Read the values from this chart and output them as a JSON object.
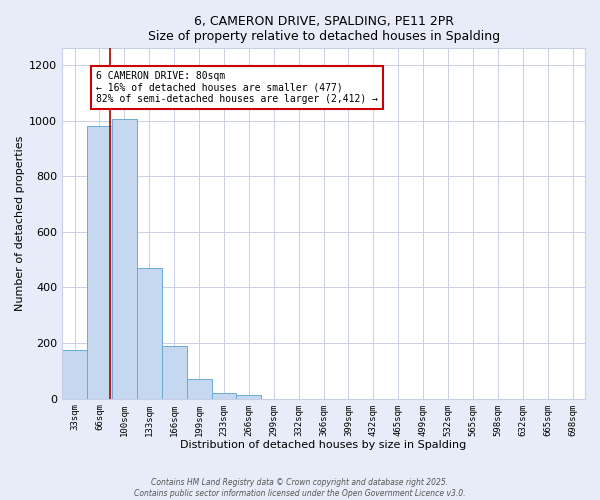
{
  "title": "6, CAMERON DRIVE, SPALDING, PE11 2PR",
  "subtitle": "Size of property relative to detached houses in Spalding",
  "xlabel": "Distribution of detached houses by size in Spalding",
  "ylabel": "Number of detached properties",
  "bar_labels": [
    "33sqm",
    "66sqm",
    "100sqm",
    "133sqm",
    "166sqm",
    "199sqm",
    "233sqm",
    "266sqm",
    "299sqm",
    "332sqm",
    "366sqm",
    "399sqm",
    "432sqm",
    "465sqm",
    "499sqm",
    "532sqm",
    "565sqm",
    "598sqm",
    "632sqm",
    "665sqm",
    "698sqm"
  ],
  "bar_values": [
    175,
    980,
    1005,
    470,
    190,
    70,
    22,
    12,
    0,
    0,
    0,
    0,
    0,
    0,
    0,
    0,
    0,
    0,
    0,
    0,
    0
  ],
  "bar_color": "#c5d8f0",
  "bar_edge_color": "#6aaad4",
  "ylim": [
    0,
    1260
  ],
  "yticks": [
    0,
    200,
    400,
    600,
    800,
    1000,
    1200
  ],
  "property_line_x": 1.42,
  "property_line_color": "#aa0000",
  "annotation_title": "6 CAMERON DRIVE: 80sqm",
  "annotation_line1": "← 16% of detached houses are smaller (477)",
  "annotation_line2": "82% of semi-detached houses are larger (2,412) →",
  "annotation_box_color": "#cc0000",
  "footer1": "Contains HM Land Registry data © Crown copyright and database right 2025.",
  "footer2": "Contains public sector information licensed under the Open Government Licence v3.0.",
  "background_color": "#e8ecf8",
  "plot_background_color": "#ffffff",
  "grid_color": "#c8cfe8"
}
